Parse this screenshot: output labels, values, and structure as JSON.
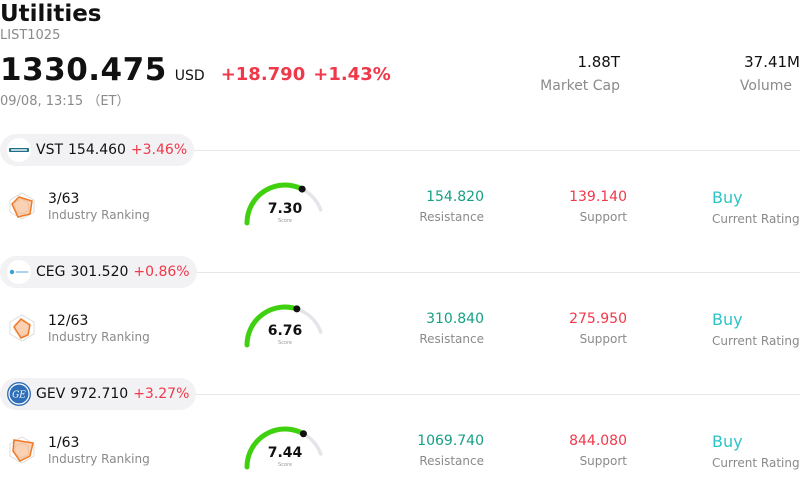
{
  "header": {
    "title": "Utilities",
    "code": "LIST1025",
    "price": "1330.475",
    "currency": "USD",
    "change": "+18.790",
    "change_pct": "+1.43%",
    "time": "09/08, 13:15 （ET）"
  },
  "stats": {
    "market_cap_value": "1.88T",
    "market_cap_label": "Market Cap",
    "volume_value": "37.41M",
    "volume_label": "Volume"
  },
  "labels": {
    "industry_ranking": "Industry Ranking",
    "score": "Score",
    "resistance": "Resistance",
    "support": "Support",
    "current_rating": "Current Rating"
  },
  "stocks": [
    {
      "symbol": "VST",
      "price": "154.460",
      "change_pct": "+3.46%",
      "rank": "3/63",
      "score": "7.30",
      "score_value": 7.3,
      "resistance": "154.820",
      "support": "139.140",
      "rating": "Buy",
      "logo_icon": "vistra-logo-icon"
    },
    {
      "symbol": "CEG",
      "price": "301.520",
      "change_pct": "+0.86%",
      "rank": "12/63",
      "score": "6.76",
      "score_value": 6.76,
      "resistance": "310.840",
      "support": "275.950",
      "rating": "Buy",
      "logo_icon": "constellation-logo-icon"
    },
    {
      "symbol": "GEV",
      "price": "972.710",
      "change_pct": "+3.27%",
      "rank": "1/63",
      "score": "7.44",
      "score_value": 7.44,
      "resistance": "1069.740",
      "support": "844.080",
      "rating": "Buy",
      "logo_icon": "ge-logo-icon"
    }
  ],
  "colors": {
    "up": "#f0384b",
    "resistance": "#16a085",
    "rating": "#2ec4c4",
    "gauge_fill": "#3fd10f",
    "gauge_track": "#e4e4ea",
    "radar": "#f07a24"
  }
}
